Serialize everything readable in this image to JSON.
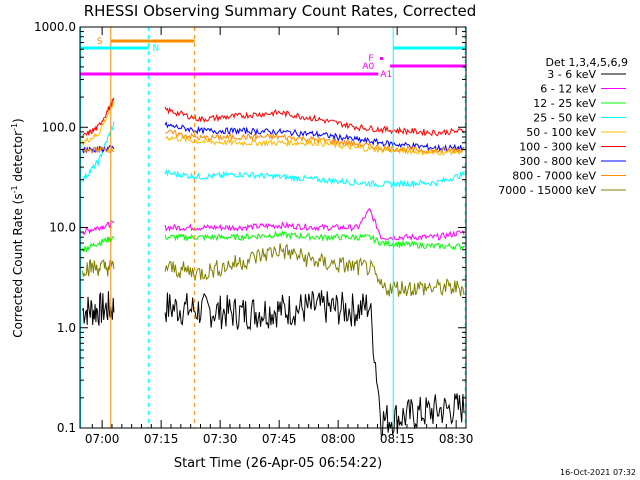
{
  "chart_data": {
    "type": "line",
    "title": "RHESSI Observing Summary Count Rates, Corrected",
    "xlabel": "Start Time (26-Apr-05 06:54:22)",
    "ylabel_main": "Corrected Count Rate (s",
    "ylabel_sup1": "-1",
    "ylabel_mid": " detector",
    "ylabel_sup2": "-1",
    "ylabel_end": ")",
    "timestamp": "16-Oct-2021 07:32",
    "yscale": "log",
    "ylim": [
      0.1,
      1000
    ],
    "xlim_min": [
      54.37,
      152.5
    ],
    "yticks": [
      {
        "v": 1000,
        "label": "1000.0"
      },
      {
        "v": 100,
        "label": "100.0"
      },
      {
        "v": 10,
        "label": "10.0"
      },
      {
        "v": 1,
        "label": "1.0"
      },
      {
        "v": 0.1,
        "label": "0.1"
      }
    ],
    "xticks": [
      {
        "t": 60,
        "label": "07:00"
      },
      {
        "t": 75,
        "label": "07:15"
      },
      {
        "t": 90,
        "label": "07:30"
      },
      {
        "t": 105,
        "label": "07:45"
      },
      {
        "t": 120,
        "label": "08:00"
      },
      {
        "t": 135,
        "label": "08:15"
      },
      {
        "t": 150,
        "label": "08:30"
      }
    ],
    "legend_title": "Det 1,3,4,5,6,9",
    "legend_placement": "right",
    "series": [
      {
        "name": "3 - 6 keV",
        "color": "#000000",
        "pts": [
          [
            55,
            1.5
          ],
          [
            59,
            1.5
          ],
          [
            63,
            1.6
          ]
        ],
        "pts2": [
          [
            76,
            1.6
          ],
          [
            85,
            1.5
          ],
          [
            95,
            1.4
          ],
          [
            105,
            1.5
          ],
          [
            115,
            1.6
          ],
          [
            125,
            1.5
          ],
          [
            128,
            1.7
          ],
          [
            131,
            0.12
          ],
          [
            145,
            0.15
          ],
          [
            152,
            0.16
          ]
        ]
      },
      {
        "name": "6 - 12 keV",
        "color": "#ff00ff",
        "pts": [
          [
            55,
            9
          ],
          [
            59,
            10
          ],
          [
            63,
            11
          ]
        ],
        "pts2": [
          [
            76,
            10
          ],
          [
            85,
            10
          ],
          [
            95,
            10
          ],
          [
            105,
            10.5
          ],
          [
            115,
            10
          ],
          [
            125,
            10
          ],
          [
            128,
            15
          ],
          [
            131,
            8
          ],
          [
            145,
            8
          ],
          [
            152,
            9
          ]
        ]
      },
      {
        "name": "12 - 25 keV",
        "color": "#00ff00",
        "pts": [
          [
            55,
            6
          ],
          [
            59,
            7
          ],
          [
            63,
            8
          ]
        ],
        "pts2": [
          [
            76,
            8
          ],
          [
            85,
            8
          ],
          [
            95,
            8
          ],
          [
            105,
            8.5
          ],
          [
            115,
            8
          ],
          [
            125,
            8
          ],
          [
            128,
            8
          ],
          [
            131,
            7
          ],
          [
            145,
            6.5
          ],
          [
            152,
            6.5
          ]
        ]
      },
      {
        "name": "25 - 50 keV",
        "color": "#00ffff",
        "pts": [
          [
            55,
            30
          ],
          [
            59,
            45
          ],
          [
            63,
            110
          ]
        ],
        "pts2": [
          [
            76,
            35
          ],
          [
            85,
            32
          ],
          [
            95,
            34
          ],
          [
            105,
            32
          ],
          [
            115,
            30
          ],
          [
            125,
            28
          ],
          [
            131,
            27
          ],
          [
            145,
            28
          ],
          [
            152,
            34
          ]
        ]
      },
      {
        "name": "50 - 100 keV",
        "color": "#ffbb00",
        "pts": [
          [
            55,
            70
          ],
          [
            59,
            85
          ],
          [
            63,
            180
          ]
        ],
        "pts2": [
          [
            76,
            80
          ],
          [
            85,
            72
          ],
          [
            95,
            70
          ],
          [
            105,
            70
          ],
          [
            115,
            70
          ],
          [
            125,
            62
          ],
          [
            131,
            60
          ],
          [
            145,
            56
          ],
          [
            152,
            58
          ]
        ]
      },
      {
        "name": "100 - 300 keV",
        "color": "#ff0000",
        "pts": [
          [
            55,
            80
          ],
          [
            59,
            100
          ],
          [
            63,
            190
          ]
        ],
        "pts2": [
          [
            76,
            150
          ],
          [
            85,
            120
          ],
          [
            95,
            130
          ],
          [
            105,
            140
          ],
          [
            115,
            120
          ],
          [
            125,
            100
          ],
          [
            131,
            95
          ],
          [
            145,
            88
          ],
          [
            152,
            92
          ]
        ]
      },
      {
        "name": "300 - 800 keV",
        "color": "#0000ff",
        "pts": [
          [
            55,
            60
          ],
          [
            59,
            60
          ],
          [
            63,
            62
          ]
        ],
        "pts2": [
          [
            76,
            105
          ],
          [
            85,
            92
          ],
          [
            95,
            92
          ],
          [
            105,
            90
          ],
          [
            115,
            85
          ],
          [
            125,
            75
          ],
          [
            131,
            70
          ],
          [
            145,
            62
          ],
          [
            152,
            62
          ]
        ]
      },
      {
        "name": "800 - 7000 keV",
        "color": "#ff8c00",
        "pts": [
          [
            55,
            58
          ],
          [
            59,
            60
          ],
          [
            63,
            60
          ]
        ],
        "pts2": [
          [
            76,
            90
          ],
          [
            85,
            78
          ],
          [
            95,
            80
          ],
          [
            105,
            80
          ],
          [
            115,
            75
          ],
          [
            125,
            68
          ],
          [
            131,
            62
          ],
          [
            145,
            58
          ],
          [
            152,
            60
          ]
        ]
      },
      {
        "name": "7000 - 15000 keV",
        "color": "#808000",
        "pts": [
          [
            55,
            4
          ],
          [
            59,
            4
          ],
          [
            63,
            4
          ]
        ],
        "pts2": [
          [
            76,
            4
          ],
          [
            85,
            3.5
          ],
          [
            95,
            4.5
          ],
          [
            105,
            6
          ],
          [
            115,
            4.5
          ],
          [
            125,
            4
          ],
          [
            128,
            4
          ],
          [
            131,
            2.5
          ],
          [
            145,
            2.5
          ],
          [
            152,
            2.5
          ]
        ]
      }
    ],
    "flags": [
      {
        "label": "S",
        "color": "#ff8c00"
      },
      {
        "label": "N",
        "color": "#00ffff"
      },
      {
        "label": "F",
        "color": "#ff00ff"
      },
      {
        "label": "A0",
        "color": "#ff00ff"
      },
      {
        "label": "A1",
        "color": "#ff00ff"
      }
    ]
  }
}
